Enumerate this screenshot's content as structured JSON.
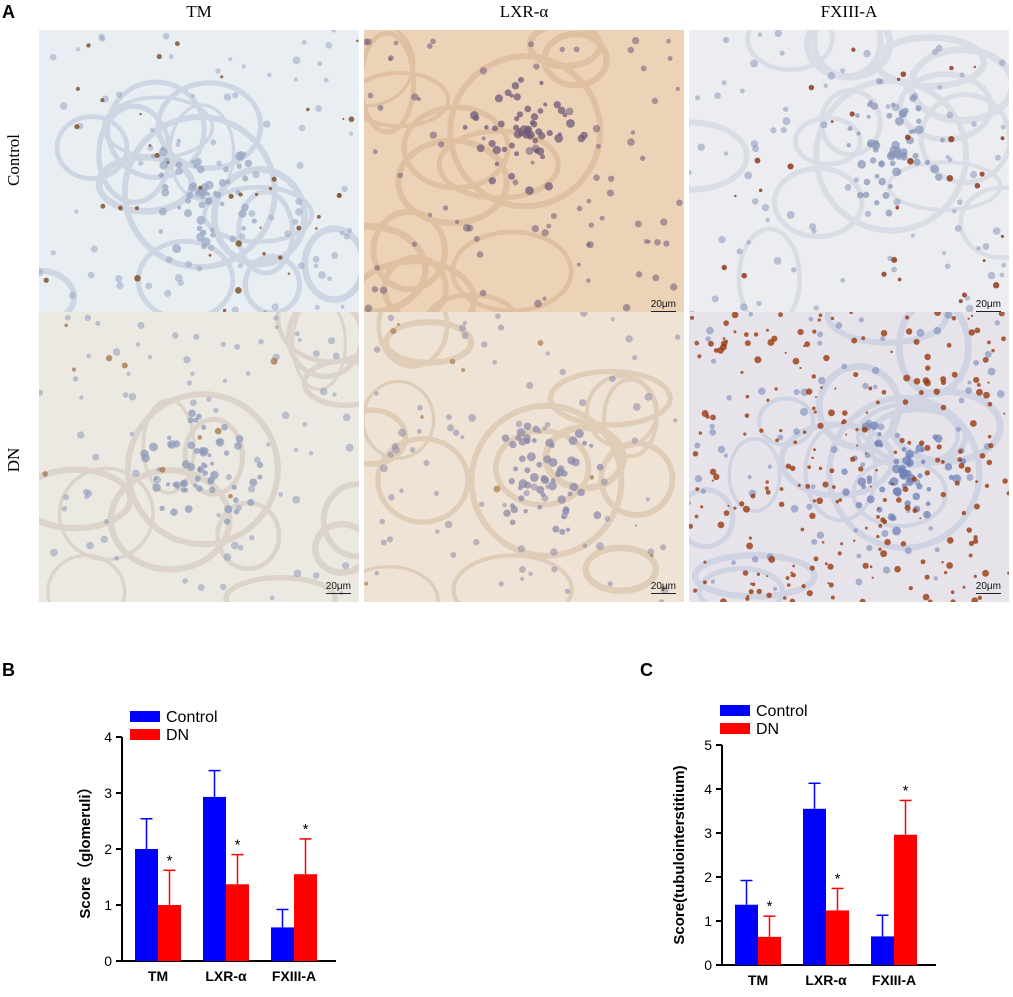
{
  "panelA": {
    "letter": "A",
    "columns": [
      "TM",
      "LXR-α",
      "FXIII-A"
    ],
    "rows": [
      "Control",
      "DN"
    ],
    "scale_bar": "20μm"
  },
  "chart_data": [
    {
      "panel": "B",
      "type": "bar",
      "categories": [
        "TM",
        "LXR-α",
        "FXIII-A"
      ],
      "series": [
        {
          "name": "Control",
          "values": [
            2.0,
            2.93,
            0.6
          ],
          "errors": [
            0.54,
            0.47,
            0.32
          ]
        },
        {
          "name": "DN",
          "values": [
            1.0,
            1.37,
            1.55
          ],
          "errors": [
            0.62,
            0.53,
            0.63
          ]
        }
      ],
      "annotations": [
        "*",
        "*",
        "*"
      ],
      "ylabel": "Score（glomeruli）",
      "ylim": [
        0,
        4
      ],
      "yticks": [
        0,
        1,
        2,
        3,
        4
      ],
      "legend": "top-left",
      "colors": {
        "Control": "#0000ff",
        "DN": "#ff0000"
      }
    },
    {
      "panel": "C",
      "type": "bar",
      "categories": [
        "TM",
        "LXR-α",
        "FXIII-A"
      ],
      "series": [
        {
          "name": "Control",
          "values": [
            1.37,
            3.55,
            0.65
          ],
          "errors": [
            0.55,
            0.58,
            0.48
          ]
        },
        {
          "name": "DN",
          "values": [
            0.64,
            1.24,
            2.96
          ],
          "errors": [
            0.47,
            0.5,
            0.78
          ]
        }
      ],
      "annotations": [
        "*",
        "*",
        "*"
      ],
      "ylabel": "Score(tubulointerstitium)",
      "ylim": [
        0,
        5
      ],
      "yticks": [
        0,
        1,
        2,
        3,
        4,
        5
      ],
      "legend": "top-left",
      "colors": {
        "Control": "#0000ff",
        "DN": "#ff0000"
      }
    }
  ]
}
